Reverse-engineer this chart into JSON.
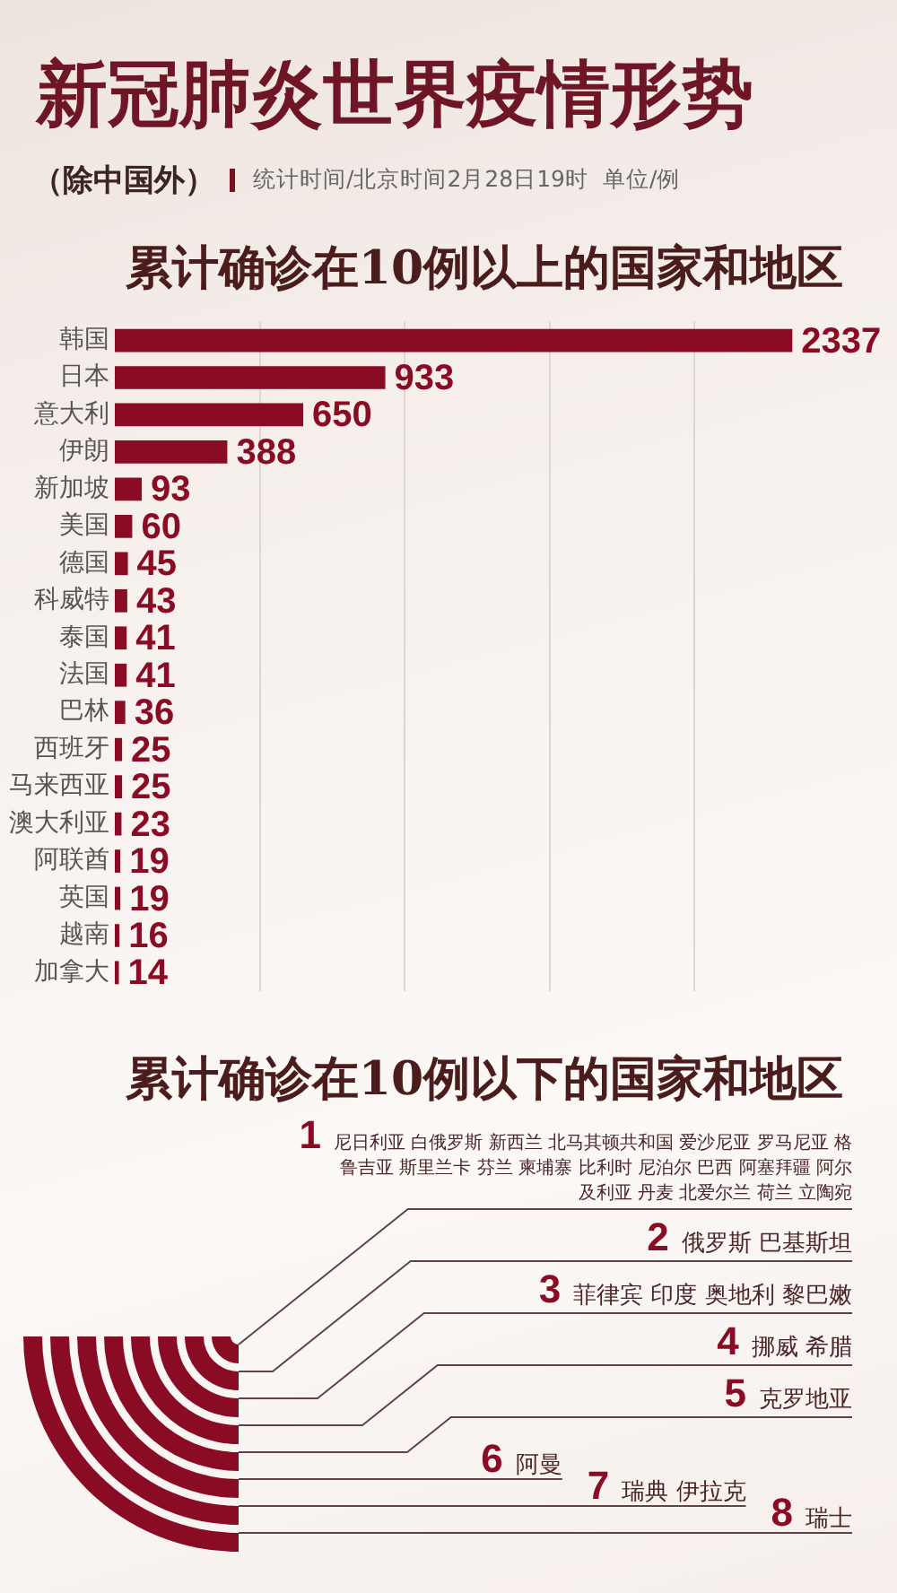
{
  "chart_data": [
    {
      "type": "bar",
      "orientation": "horizontal",
      "title": "新冠肺炎世界疫情形势",
      "subtitle": "（除中国外）",
      "annotations": [
        "统计时间/北京时间2月28日19时",
        "单位/例",
        "累计确诊在10例以上的国家和地区"
      ],
      "categories": [
        "韩国",
        "日本",
        "意大利",
        "伊朗",
        "新加坡",
        "美国",
        "德国",
        "科威特",
        "泰国",
        "法国",
        "巴林",
        "西班牙",
        "马来西亚",
        "澳大利亚",
        "阿联酋",
        "英国",
        "越南",
        "加拿大"
      ],
      "values": [
        2337,
        933,
        650,
        388,
        93,
        60,
        45,
        43,
        41,
        41,
        36,
        25,
        25,
        23,
        19,
        19,
        16,
        14
      ],
      "color": "#8a0c24",
      "data_labels": true,
      "xticks": [
        {
          "value": 500,
          "label": null
        },
        {
          "value": 1000,
          "label": null
        },
        {
          "value": 1500,
          "label": null
        },
        {
          "value": 2000,
          "label": null
        }
      ],
      "grid": "x",
      "tick_labels": "y"
    },
    {
      "type": "other",
      "title": "累计确诊在10例以下的国家和地区",
      "categories": [
        "尼日利亚 白俄罗斯 新西兰 北马其顿共和国 爱沙尼亚 罗马尼亚 格鲁吉亚 斯里兰卡 芬兰 柬埔寨 比利时 尼泊尔 巴西 阿塞拜疆 阿尔及利亚 丹麦 北爱尔兰 荷兰 立陶宛",
        "俄罗斯 巴基斯坦",
        "菲律宾 印度 奥地利 黎巴嫩",
        "挪威 希腊",
        "克罗地亚",
        "阿曼",
        "瑞典 伊拉克",
        "瑞士"
      ],
      "values": [
        1,
        2,
        3,
        4,
        5,
        6,
        7,
        8
      ],
      "color": "#8a0c24",
      "data_labels": true
    }
  ]
}
